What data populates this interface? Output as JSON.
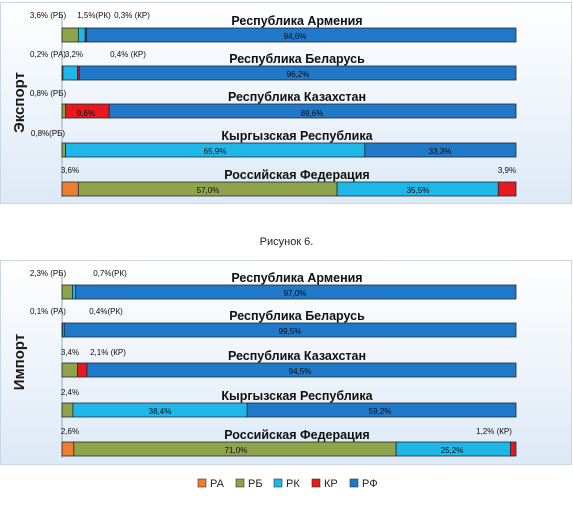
{
  "caption": "Рисунок 6.",
  "colors": {
    "РА": "#ed7d31",
    "РБ": "#8ea34a",
    "РК": "#1eb7e8",
    "КР": "#e8191e",
    "РФ": "#1f78c8"
  },
  "legend": [
    "РА",
    "РБ",
    "РК",
    "КР",
    "РФ"
  ],
  "chart_data": [
    {
      "type": "bar",
      "stacked": true,
      "orientation": "horizontal",
      "ylabel": "Экспорт",
      "xlim": [
        0,
        100
      ],
      "series_order": [
        "РА",
        "РБ",
        "РК",
        "КР",
        "РФ"
      ],
      "rows": [
        {
          "name": "Республика Армения",
          "values": {
            "РБ": 3.6,
            "РК": 1.5,
            "КР": 0.3,
            "РФ": 94.6
          },
          "labels": [
            {
              "text": "3,6% (РБ)"
            },
            {
              "text": "1,5%(РК)"
            },
            {
              "text": "0,3% (КР)"
            },
            {
              "text": "94,6%"
            }
          ]
        },
        {
          "name": "Республика Беларусь",
          "values": {
            "РА": 0.2,
            "РК": 3.2,
            "КР": 0.4,
            "РФ": 96.2
          },
          "labels": [
            {
              "text": "0,2% (РА)"
            },
            {
              "text": "3,2%"
            },
            {
              "text": "0,4% (КР)"
            },
            {
              "text": "96,2%"
            }
          ]
        },
        {
          "name": "Республика Казахстан",
          "values": {
            "РБ": 0.8,
            "КР": 9.6,
            "РФ": 89.6
          },
          "labels": [
            {
              "text": "0,8% (РБ)"
            },
            {
              "text": "9,6%"
            },
            {
              "text": "89,6%"
            }
          ]
        },
        {
          "name": "Кыргызская Республика",
          "values": {
            "РБ": 0.8,
            "РК": 65.9,
            "РФ": 33.3
          },
          "labels": [
            {
              "text": "0,8%(РБ)"
            },
            {
              "text": "65,9%"
            },
            {
              "text": "33,3%"
            }
          ]
        },
        {
          "name": "Российская Федерация",
          "values": {
            "РА": 3.6,
            "РБ": 57.0,
            "РК": 35.5,
            "КР": 3.9
          },
          "labels": [
            {
              "text": "3,6%"
            },
            {
              "text": "57,0%"
            },
            {
              "text": "35,5%"
            },
            {
              "text": "3,9%"
            }
          ]
        }
      ]
    },
    {
      "type": "bar",
      "stacked": true,
      "orientation": "horizontal",
      "ylabel": "Импорт",
      "xlim": [
        0,
        100
      ],
      "series_order": [
        "РА",
        "РБ",
        "РК",
        "КР",
        "РФ"
      ],
      "rows": [
        {
          "name": "Республика Армения",
          "values": {
            "РБ": 2.3,
            "РК": 0.7,
            "РФ": 97.0
          },
          "labels": [
            {
              "text": "2,3% (РБ)"
            },
            {
              "text": "0,7%(РК)"
            },
            {
              "text": "97,0%"
            }
          ]
        },
        {
          "name": "Республика Беларусь",
          "values": {
            "РА": 0.1,
            "РК": 0.4,
            "РФ": 99.5
          },
          "labels": [
            {
              "text": "0,1% (РА)"
            },
            {
              "text": "0,4%(РК)"
            },
            {
              "text": "99,5%"
            }
          ]
        },
        {
          "name": "Республика Казахстан",
          "values": {
            "РБ": 3.4,
            "КР": 2.1,
            "РФ": 94.5
          },
          "labels": [
            {
              "text": "3,4%"
            },
            {
              "text": "2,1% (КР)"
            },
            {
              "text": "94,5%"
            }
          ]
        },
        {
          "name": "Кыргызская Республика",
          "values": {
            "РБ": 2.4,
            "РК": 38.4,
            "РФ": 59.2
          },
          "labels": [
            {
              "text": "2,4%"
            },
            {
              "text": "38,4%"
            },
            {
              "text": "59,2%"
            }
          ]
        },
        {
          "name": "Российская Федерация",
          "values": {
            "РА": 2.6,
            "РБ": 71.0,
            "РК": 25.2,
            "КР": 1.2
          },
          "labels": [
            {
              "text": "2,6%"
            },
            {
              "text": "71,0%"
            },
            {
              "text": "25,2%"
            },
            {
              "text": "1,2% (КР)"
            }
          ]
        }
      ]
    }
  ]
}
